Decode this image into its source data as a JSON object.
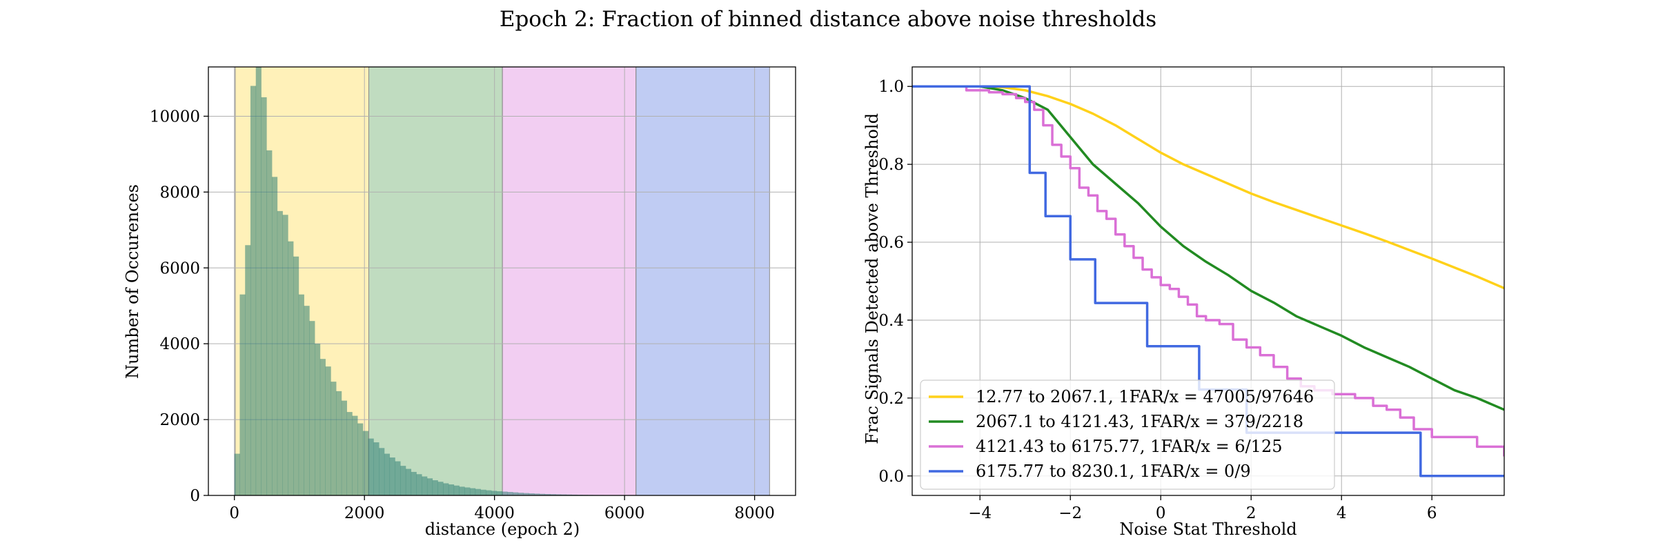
{
  "figure": {
    "title": "Epoch 2: Fraction of binned distance above noise thresholds"
  },
  "chart_data": [
    {
      "type": "bar",
      "name": "histogram",
      "xlabel": "distance (epoch 2)",
      "ylabel": "Number of Occurences",
      "xlim": [
        -400,
        8630
      ],
      "ylim": [
        0,
        11300
      ],
      "xticks": [
        0,
        2000,
        4000,
        6000,
        8000
      ],
      "yticks": [
        0,
        2000,
        4000,
        6000,
        8000,
        10000
      ],
      "grid": true,
      "bin_start": 0,
      "bin_width": 82.3,
      "bar_color": "#2f7f74",
      "counts": [
        1100,
        5300,
        6600,
        10800,
        11300,
        10500,
        9100,
        8400,
        7500,
        7400,
        6700,
        6300,
        5300,
        5000,
        4600,
        4000,
        3600,
        3400,
        3000,
        2750,
        2500,
        2200,
        2100,
        1900,
        1700,
        1500,
        1400,
        1250,
        1100,
        1000,
        900,
        780,
        700,
        620,
        560,
        500,
        450,
        400,
        360,
        320,
        290,
        260,
        230,
        210,
        190,
        170,
        150,
        135,
        120,
        110,
        100,
        90,
        80,
        70,
        62,
        55,
        48,
        42,
        37,
        33,
        29,
        26,
        23,
        20,
        17,
        15,
        13,
        11,
        10,
        9,
        8,
        7,
        6,
        5,
        5,
        4,
        4,
        3,
        3,
        3,
        2,
        2,
        2,
        2,
        1,
        1,
        1,
        1,
        1,
        1,
        1,
        1,
        0,
        1,
        0,
        0,
        1,
        0,
        0,
        0
      ],
      "distance_bins": [
        {
          "from": 12.77,
          "to": 2067.1,
          "color": "#ffe680"
        },
        {
          "from": 2067.1,
          "to": 4121.43,
          "color": "#8cc08c"
        },
        {
          "from": 4121.43,
          "to": 6175.77,
          "color": "#e8a6e8"
        },
        {
          "from": 6175.77,
          "to": 8230.1,
          "color": "#8ca3ea"
        }
      ]
    },
    {
      "type": "line",
      "name": "fraction-above-threshold",
      "xlabel": "Noise Stat Threshold",
      "ylabel": "Frac Signals Detected above Threshold",
      "xlim": [
        -5.5,
        7.6
      ],
      "ylim": [
        -0.05,
        1.05
      ],
      "xticks": [
        -4,
        -2,
        0,
        2,
        4,
        6
      ],
      "yticks": [
        0.0,
        0.2,
        0.4,
        0.6,
        0.8,
        1.0
      ],
      "ytick_labels": [
        "0.0",
        "0.2",
        "0.4",
        "0.6",
        "0.8",
        "1.0"
      ],
      "grid": true,
      "legend_position": "lower-left",
      "series": [
        {
          "name": "12.77 to 2067.1, 1FAR/x = 47005/97646",
          "color": "#ffd11a",
          "step": false,
          "x": [
            -5.5,
            -4,
            -3.5,
            -3,
            -2.5,
            -2,
            -1.5,
            -1,
            -0.5,
            0,
            0.5,
            1,
            1.5,
            2,
            2.5,
            3,
            3.5,
            4,
            4.5,
            5,
            5.5,
            6,
            6.5,
            7,
            7.6
          ],
          "y": [
            1.0,
            1.0,
            0.998,
            0.99,
            0.975,
            0.955,
            0.93,
            0.9,
            0.865,
            0.83,
            0.8,
            0.775,
            0.75,
            0.725,
            0.703,
            0.683,
            0.663,
            0.643,
            0.623,
            0.602,
            0.58,
            0.558,
            0.535,
            0.512,
            0.482
          ]
        },
        {
          "name": "2067.1 to 4121.43, 1FAR/x = 379/2218",
          "color": "#228b22",
          "step": false,
          "x": [
            -5.5,
            -4,
            -3.5,
            -3,
            -2.5,
            -2,
            -1.5,
            -1,
            -0.5,
            0,
            0.5,
            1,
            1.5,
            2,
            2.5,
            3,
            3.5,
            4,
            4.5,
            5,
            5.5,
            6,
            6.5,
            7,
            7.6
          ],
          "y": [
            1.0,
            1.0,
            0.99,
            0.97,
            0.94,
            0.87,
            0.8,
            0.75,
            0.7,
            0.64,
            0.59,
            0.55,
            0.515,
            0.475,
            0.445,
            0.41,
            0.385,
            0.36,
            0.33,
            0.305,
            0.28,
            0.25,
            0.22,
            0.2,
            0.17
          ]
        },
        {
          "name": "4121.43 to 6175.77, 1FAR/x = 6/125",
          "color": "#da70d6",
          "step": true,
          "x": [
            -5.5,
            -4.3,
            -3.8,
            -3.5,
            -3.2,
            -3.0,
            -2.8,
            -2.6,
            -2.4,
            -2.2,
            -2.0,
            -1.8,
            -1.6,
            -1.4,
            -1.2,
            -1.0,
            -0.8,
            -0.6,
            -0.4,
            -0.2,
            0.0,
            0.2,
            0.4,
            0.6,
            0.8,
            1.0,
            1.3,
            1.6,
            1.9,
            2.2,
            2.5,
            2.8,
            3.1,
            3.4,
            3.8,
            4.3,
            4.7,
            5.0,
            5.3,
            5.6,
            6.0,
            7.0,
            7.6
          ],
          "y": [
            1.0,
            0.99,
            0.985,
            0.98,
            0.97,
            0.96,
            0.94,
            0.9,
            0.85,
            0.82,
            0.79,
            0.74,
            0.72,
            0.68,
            0.66,
            0.62,
            0.59,
            0.56,
            0.53,
            0.51,
            0.49,
            0.48,
            0.46,
            0.44,
            0.41,
            0.4,
            0.39,
            0.35,
            0.33,
            0.31,
            0.28,
            0.25,
            0.23,
            0.22,
            0.21,
            0.2,
            0.18,
            0.17,
            0.15,
            0.12,
            0.1,
            0.075,
            0.05
          ]
        },
        {
          "name": "6175.77 to 8230.1, 1FAR/x = 0/9",
          "color": "#4169e1",
          "step": true,
          "x": [
            -5.5,
            -2.9,
            -2.55,
            -2.0,
            -1.45,
            -0.3,
            0.85,
            1.9,
            5.55,
            5.75,
            7.6
          ],
          "y": [
            1.0,
            0.778,
            0.667,
            0.556,
            0.444,
            0.333,
            0.222,
            0.111,
            0.111,
            0.0,
            0.0
          ]
        }
      ]
    }
  ]
}
